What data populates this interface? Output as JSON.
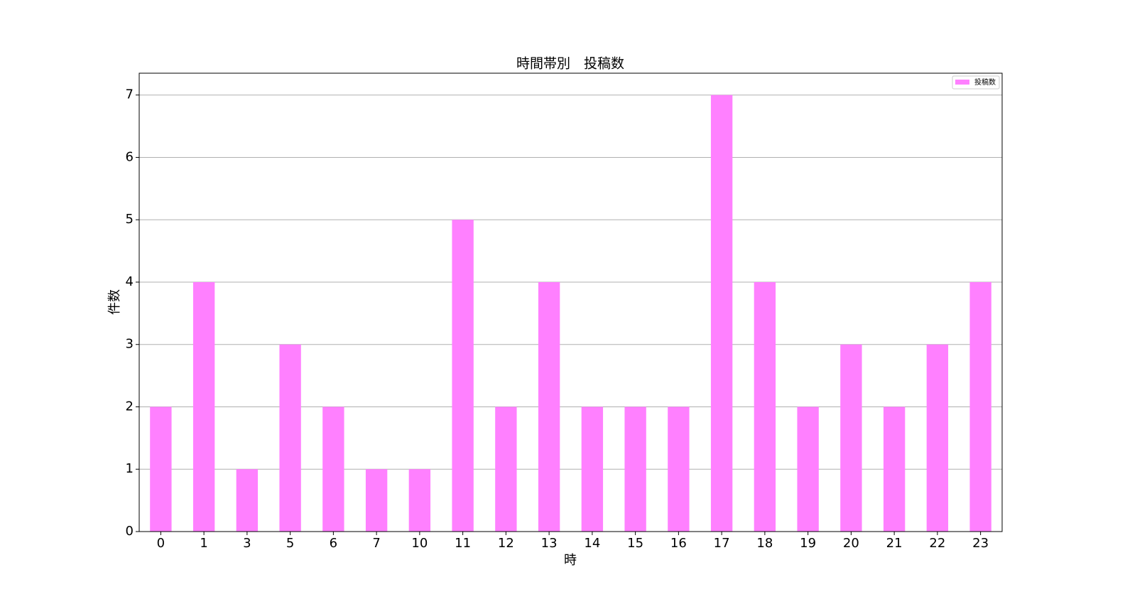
{
  "chart_data": {
    "type": "bar",
    "title": "時間帯別　投稿数",
    "x_label": "時",
    "y_label": "件数",
    "categories": [
      "0",
      "1",
      "3",
      "5",
      "6",
      "7",
      "10",
      "11",
      "12",
      "13",
      "14",
      "15",
      "16",
      "17",
      "18",
      "19",
      "20",
      "21",
      "22",
      "23"
    ],
    "series": [
      {
        "name": "投稿数",
        "color": "#ff80ff",
        "values": [
          2,
          4,
          1,
          3,
          2,
          1,
          1,
          5,
          2,
          4,
          2,
          2,
          2,
          7,
          4,
          2,
          3,
          2,
          3,
          4
        ]
      }
    ],
    "ylim": [
      0,
      7.35
    ],
    "yticks": [
      0,
      1,
      2,
      3,
      4,
      5,
      6,
      7
    ],
    "grid": true,
    "legend": "upper right"
  }
}
